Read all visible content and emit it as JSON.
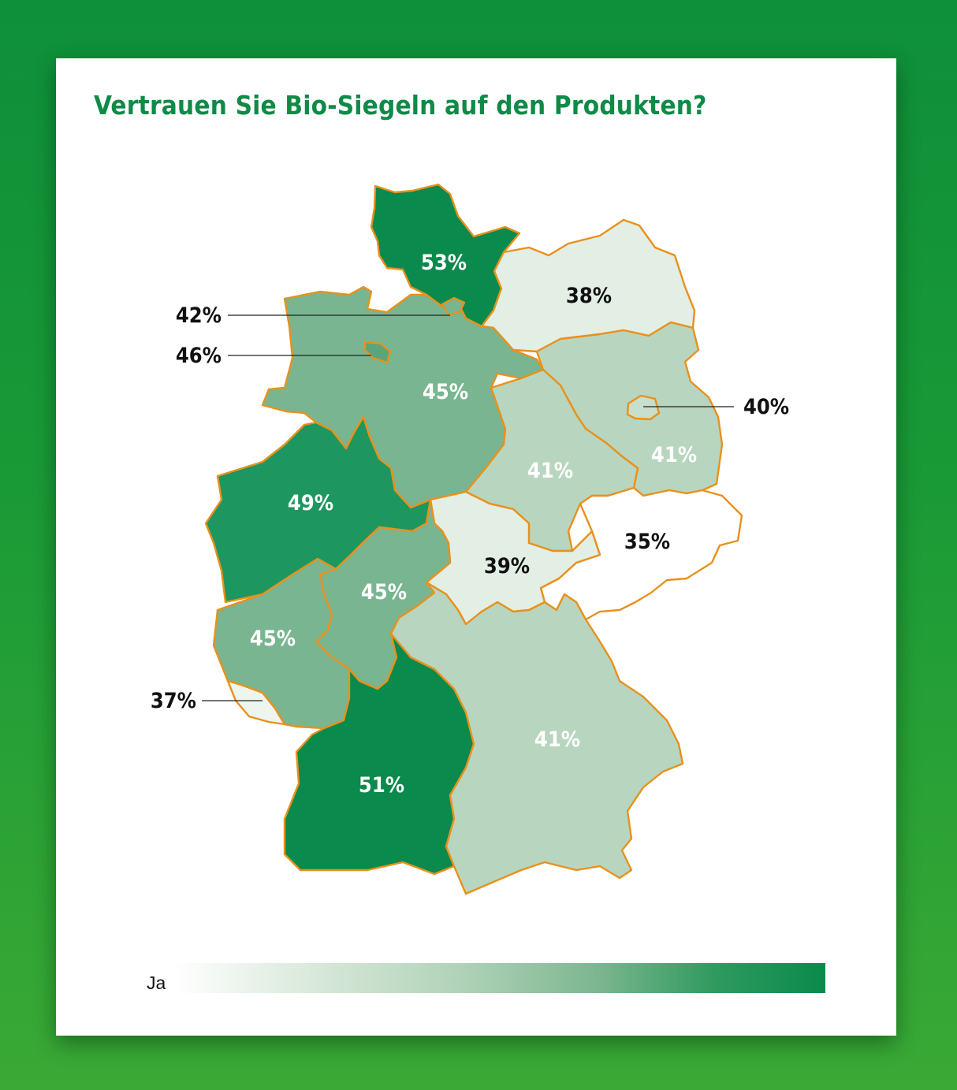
{
  "title": "Vertrauen Sie Bio-Siegeln auf den Produkten?",
  "legend": {
    "label": "Ja"
  },
  "colors": {
    "background": "#1a9a36",
    "title": "#0f8a47",
    "border": "#e8911c",
    "scale_low": "#ffffff",
    "scale_high": "#0a8a4c"
  },
  "regions": {
    "schleswig_holstein": {
      "value": "53%"
    },
    "mecklenburg_vorpommern": {
      "value": "38%"
    },
    "hamburg": {
      "value": "42%"
    },
    "bremen": {
      "value": "46%"
    },
    "niedersachsen": {
      "value": "45%"
    },
    "brandenburg": {
      "value": "41%"
    },
    "berlin": {
      "value": "40%"
    },
    "sachsen_anhalt": {
      "value": "41%"
    },
    "nordrhein_westfalen": {
      "value": "49%"
    },
    "sachsen": {
      "value": "35%"
    },
    "thueringen": {
      "value": "39%"
    },
    "hessen": {
      "value": "45%"
    },
    "rheinland_pfalz": {
      "value": "45%"
    },
    "saarland": {
      "value": "37%"
    },
    "baden_wuerttemberg": {
      "value": "51%"
    },
    "bayern": {
      "value": "41%"
    }
  }
}
